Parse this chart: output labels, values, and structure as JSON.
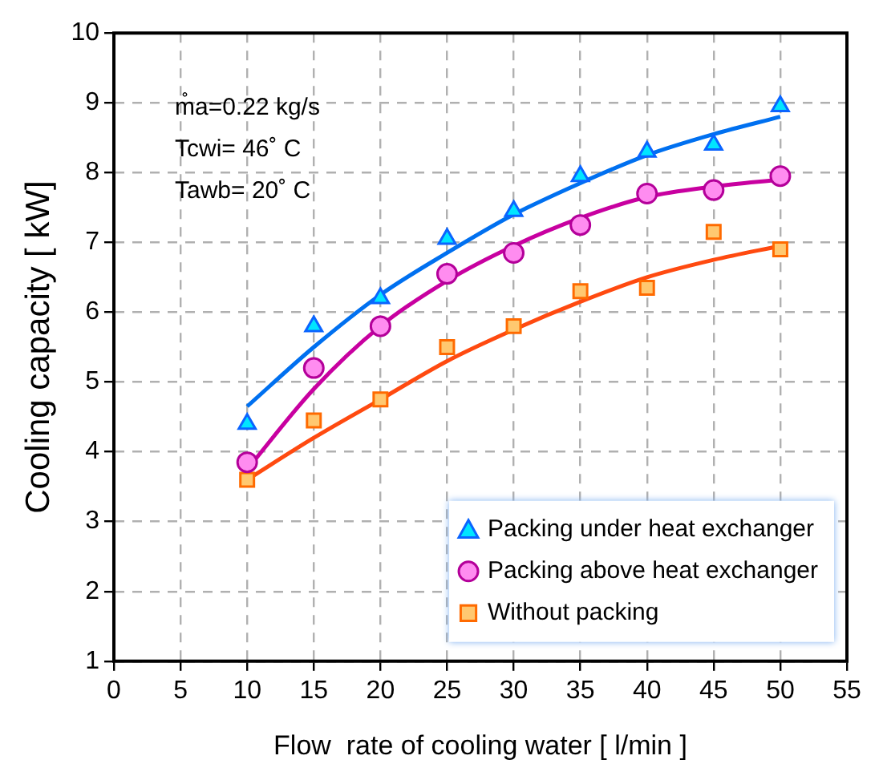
{
  "chart_data": {
    "type": "scatter",
    "xlabel": "Flow  rate of cooling water [ l/min ]",
    "ylabel": "Cooling capacity [ kW]",
    "x": [
      10,
      15,
      20,
      25,
      30,
      35,
      40,
      45,
      50
    ],
    "series": [
      {
        "name": "Packing under heat exchanger",
        "type": "scatter",
        "marker": "triangle",
        "color": "#00e5ff",
        "values": [
          4.4,
          5.8,
          6.2,
          7.05,
          7.45,
          7.95,
          8.3,
          8.4,
          8.95
        ]
      },
      {
        "name": "Packing above heat exchanger",
        "type": "scatter",
        "marker": "circle",
        "color": "#ff8cf0",
        "values": [
          3.85,
          5.2,
          5.8,
          6.55,
          6.85,
          7.25,
          7.7,
          7.75,
          7.95
        ]
      },
      {
        "name": "Without packing",
        "type": "scatter",
        "marker": "square",
        "color": "#ffc870",
        "values": [
          3.6,
          4.45,
          4.75,
          5.5,
          5.8,
          6.3,
          6.35,
          7.15,
          6.9
        ]
      },
      {
        "type": "line",
        "marker": "none",
        "color": "#0070f0",
        "values": [
          4.65,
          5.5,
          6.25,
          6.85,
          7.4,
          7.85,
          8.25,
          8.55,
          8.8
        ]
      },
      {
        "type": "line",
        "marker": "none",
        "color": "#c800a0",
        "values": [
          3.75,
          4.9,
          5.8,
          6.45,
          6.95,
          7.35,
          7.65,
          7.8,
          7.9
        ]
      },
      {
        "type": "line",
        "marker": "none",
        "color": "#ff4a10",
        "values": [
          3.6,
          4.2,
          4.75,
          5.3,
          5.75,
          6.15,
          6.5,
          6.75,
          6.95
        ]
      }
    ],
    "xlim": [
      0,
      55
    ],
    "xticks": [
      0,
      5,
      10,
      15,
      20,
      25,
      30,
      35,
      40,
      45,
      50,
      55
    ],
    "ylim": [
      1,
      10
    ],
    "yticks": [
      1,
      2,
      3,
      4,
      5,
      6,
      7,
      8,
      9,
      10
    ],
    "grid": true,
    "legend": "bottom right",
    "annotations": [
      "m̊a=0.22 kg/s",
      "Tcwi= 46˚ C",
      "Tawb= 20˚ C"
    ]
  }
}
